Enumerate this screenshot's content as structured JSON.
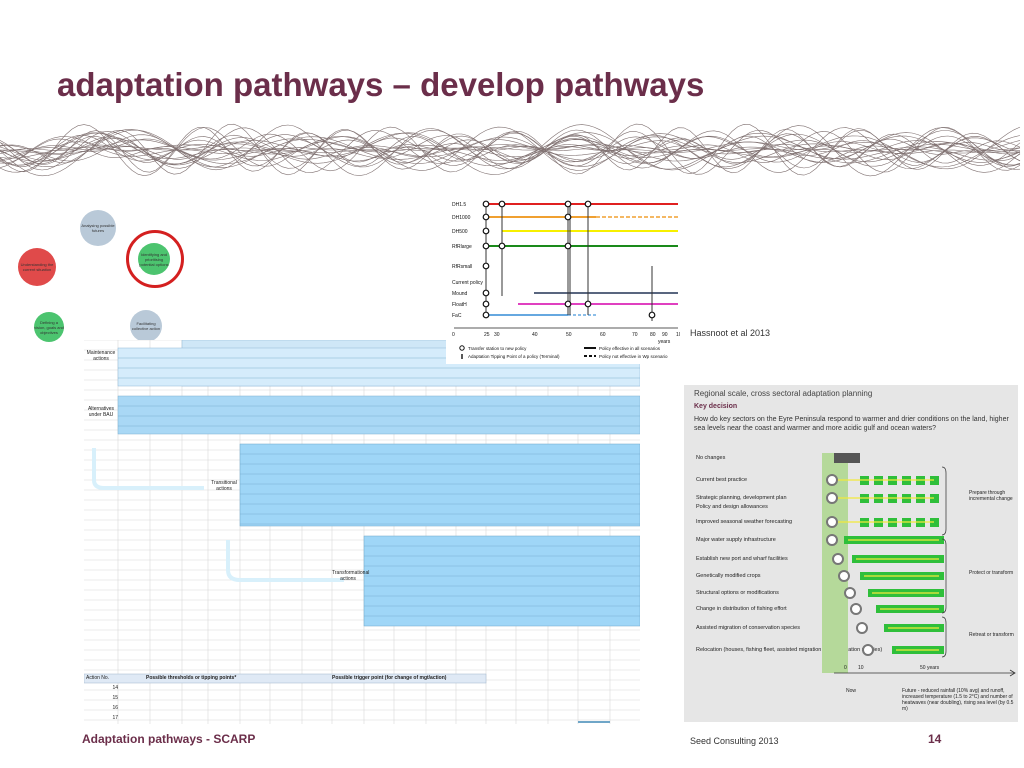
{
  "slide": {
    "title": "adaptation pathways – develop pathways",
    "footer_left": "Adaptation pathways - SCARP",
    "footer_center": "Seed Consulting 2013",
    "page_number": "14",
    "citation": "Hassnoot  et al 2013"
  },
  "cycle": {
    "steps": [
      {
        "label": "Analysing possible futures",
        "color": "#b9c9d8"
      },
      {
        "label": "Understanding the current situation",
        "color": "#e04a4a"
      },
      {
        "label": "Identifying and prioritising potential options",
        "color": "#4cc46f"
      },
      {
        "label": "Defining a vision, goals and objectives",
        "color": "#4cc46f"
      },
      {
        "label": "Facilitating collective action",
        "color": "#b9c9d8"
      }
    ],
    "highlight_color": "#d42020"
  },
  "worksheet": {
    "maintenance_label": "Maintenance actions",
    "alternatives_label": "Alternatives under BAU",
    "transition_label": "Transitional actions",
    "transform_label": "Transformational actions",
    "action_no_header": "Action No.",
    "thresholds_header": "Possible thresholds or tipping points*",
    "trigger_header": "Possible trigger point (for change of mgt/action)",
    "row_numbers": [
      "14",
      "15",
      "16",
      "17"
    ]
  },
  "pathways_example": {
    "rows": [
      "DH1.5",
      "DH1000",
      "DH500",
      "RfRlarge",
      "RfRsmall",
      "Current policy",
      "Mound",
      "FloatH",
      "FaC"
    ],
    "x_ticks": [
      "0",
      "25",
      "30",
      "40",
      "50",
      "60",
      "70",
      "80",
      "90",
      "100"
    ],
    "x_unit": "years",
    "legend": {
      "transfer": "Transfer station to new policy",
      "tipping": "Adaptation Tipping Point of a policy (Terminal)",
      "effective_all": "Policy effective in all scenarios",
      "not_effective": "Policy not effective in Wp scenario"
    }
  },
  "regional_panel": {
    "title": "Regional scale, cross sectoral adaptation planning",
    "key_decision": "Key decision",
    "question": "How do key sectors on the Eyre Peninsula respond to warmer and drier conditions on the land, higher sea levels near the coast and warmer and more acidic gulf and ocean waters?",
    "options": [
      "No changes",
      "Current best practice",
      "Strategic planning, development plan",
      "Policy and design allowances",
      "Improved seasonal weather forecasting",
      "Major water supply infrastructure",
      "Establish new port and wharf facilities",
      "Genetically modified crops",
      "Structural options or modifications",
      "Change in distribution of fishing effort",
      "Assisted migration of conservation species",
      "Relocation (houses, fishing fleet, assisted migration of conservation species)"
    ],
    "groups": [
      "Prepare through incremental change",
      "Protect or transform",
      "Retreat or transform"
    ],
    "axis_ticks": [
      "0",
      "10",
      "50 years"
    ],
    "now_label": "Now",
    "future_label": "Future - reduced rainfall (10% avg) and runoff, increased temperature (1.5 to 2°C) and number of heatwaves (near doubling), rising sea level (by 0.5 m)",
    "colors": {
      "green": "#2fbf3a",
      "bg": "#e6e6e6",
      "band": "#b5d99a",
      "arrow": "#f2e93a"
    }
  }
}
